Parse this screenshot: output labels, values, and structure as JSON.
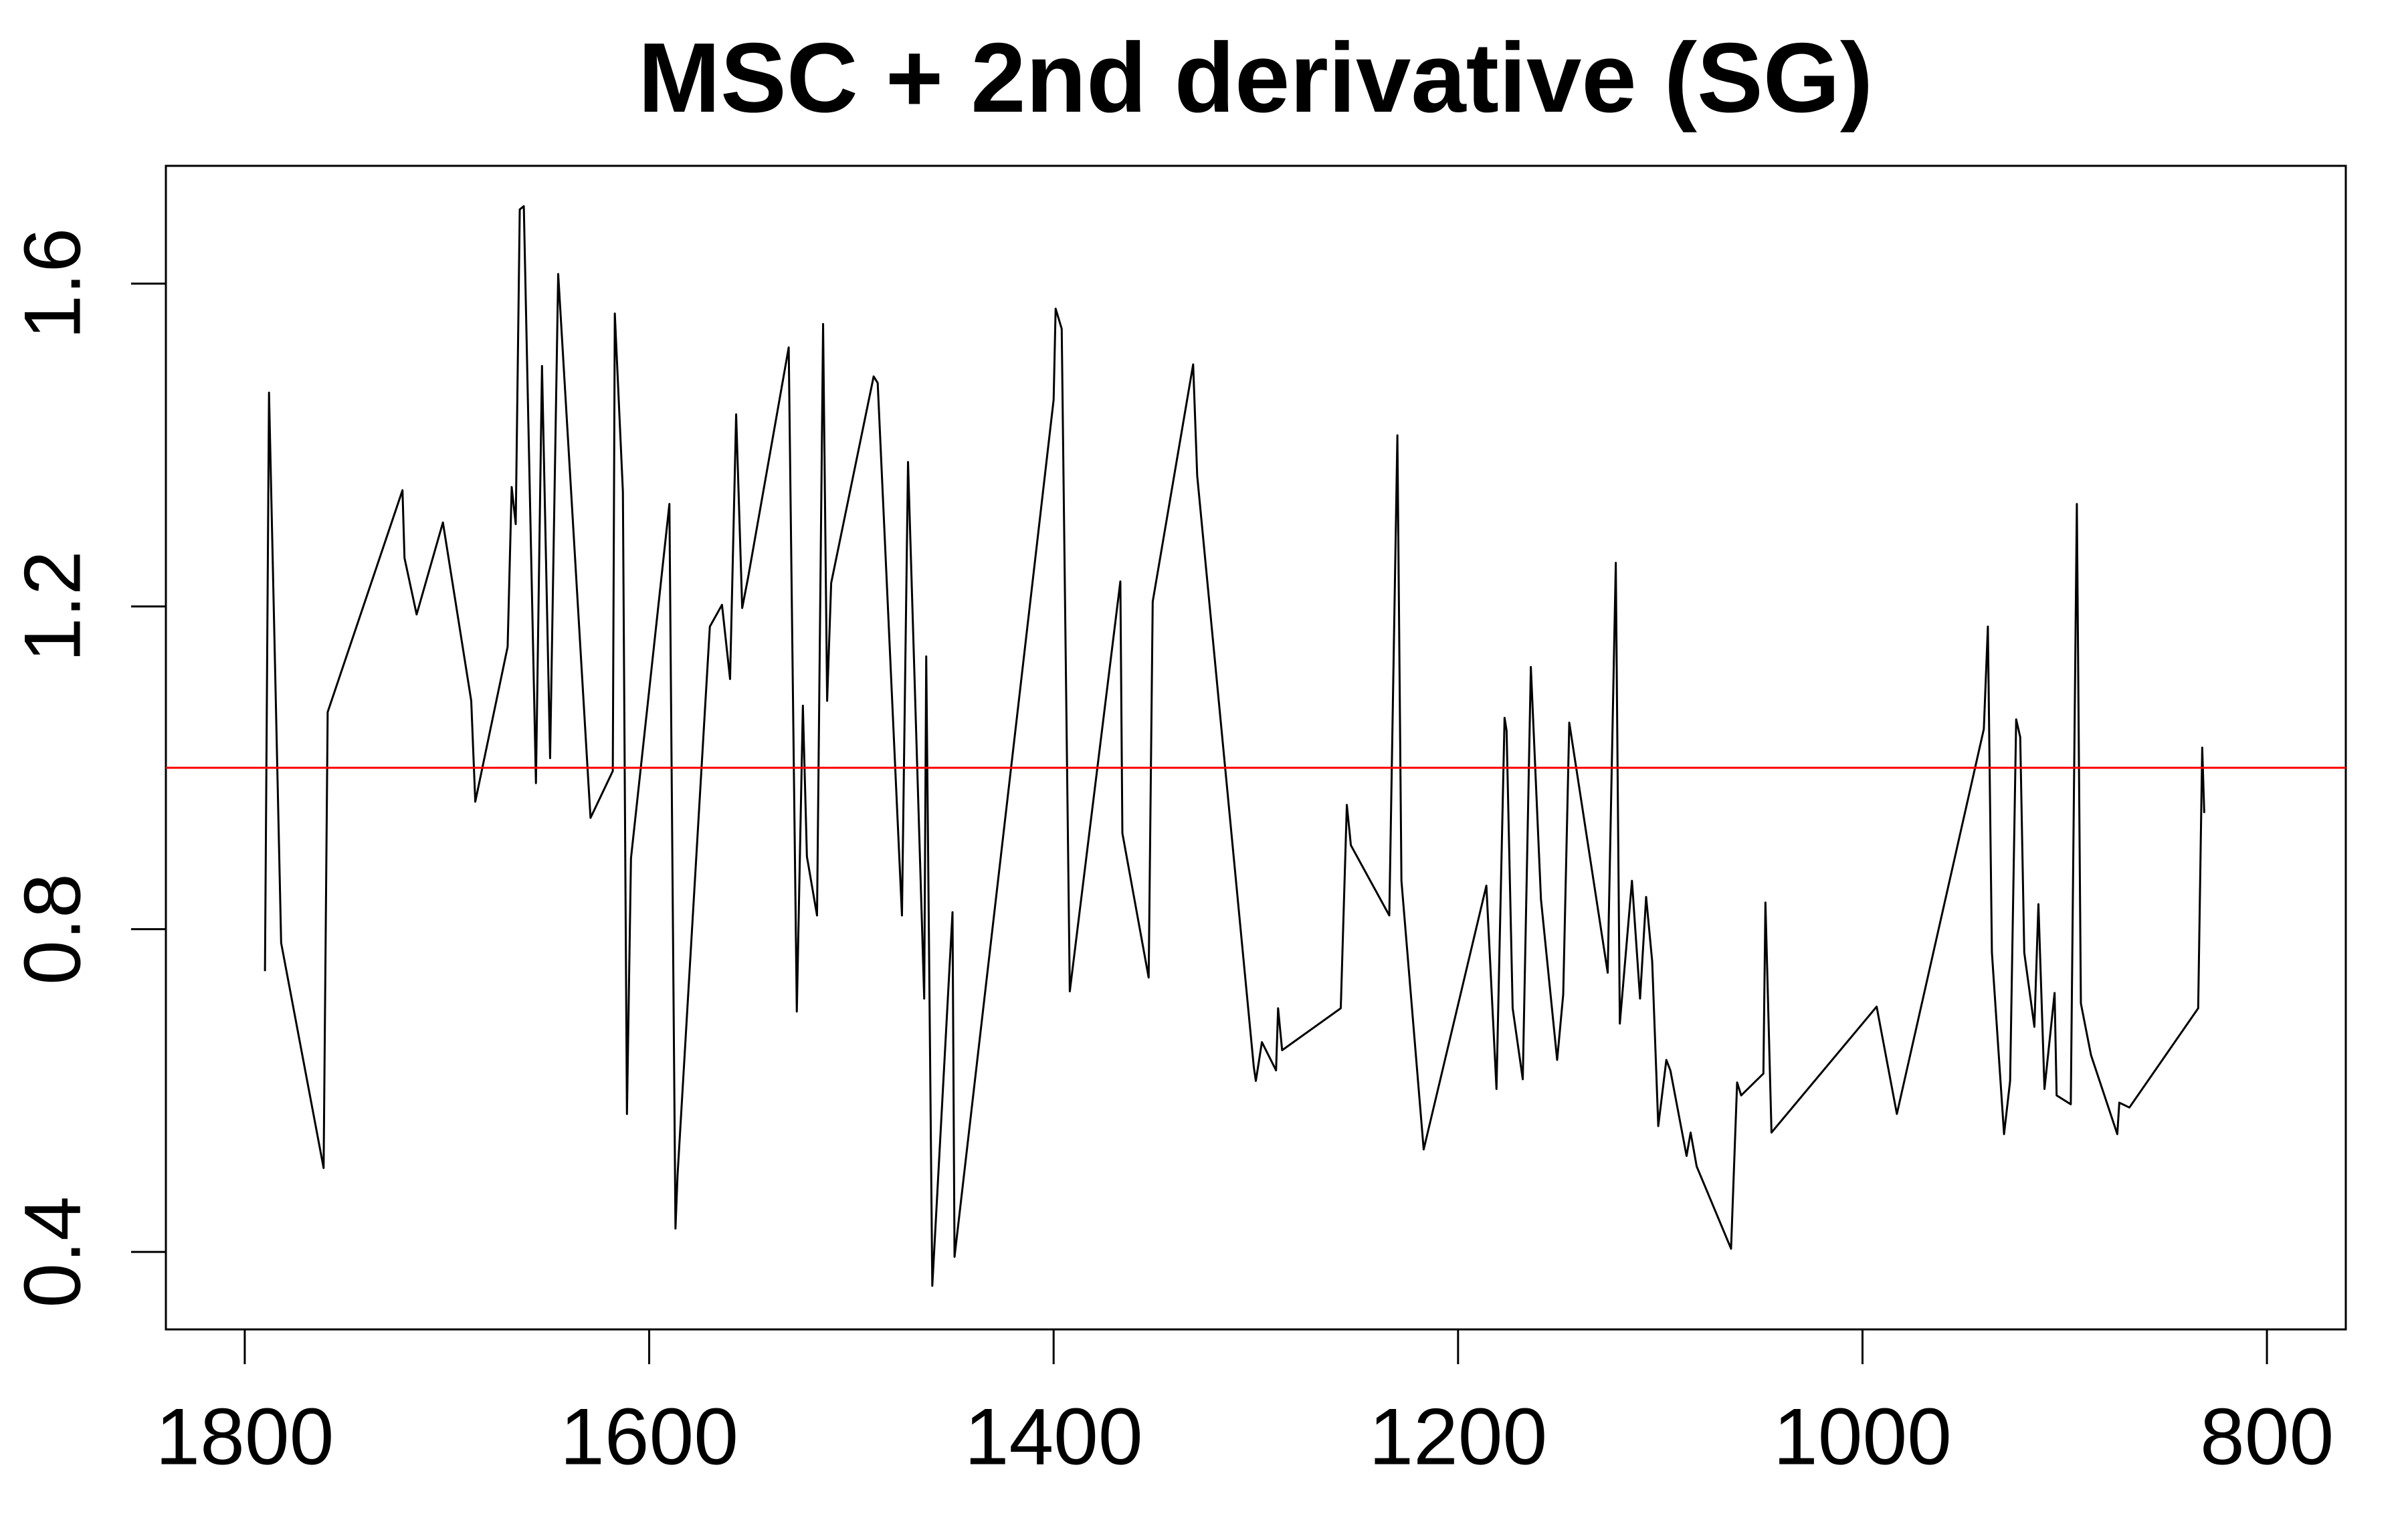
{
  "chart_data": {
    "type": "line",
    "title": "MSC + 2nd derivative (SG)",
    "x": [
      1790,
      1788,
      1782,
      1761,
      1759,
      1722,
      1721,
      1715,
      1702,
      1688,
      1686,
      1670,
      1668,
      1666,
      1664,
      1662,
      1656,
      1653,
      1649,
      1645,
      1630,
      1629,
      1618,
      1617,
      1613,
      1611,
      1609,
      1590,
      1587,
      1586,
      1570,
      1564,
      1560,
      1557,
      1554,
      1551,
      1531,
      1527,
      1524,
      1522,
      1517,
      1514,
      1512,
      1510,
      1489,
      1487,
      1475,
      1472,
      1464,
      1463,
      1460,
      1450,
      1449,
      1400,
      1399,
      1396,
      1392,
      1367,
      1366,
      1353,
      1351,
      1331,
      1329,
      1301,
      1300,
      1297,
      1290,
      1289,
      1287,
      1258,
      1255,
      1253,
      1234,
      1230,
      1228,
      1217,
      1186,
      1181,
      1177,
      1176,
      1173,
      1168,
      1164,
      1159,
      1151,
      1148,
      1145,
      1126,
      1122,
      1120,
      1114,
      1110,
      1107,
      1104,
      1101,
      1097,
      1095,
      1087,
      1085,
      1082,
      1065,
      1062,
      1060,
      1049,
      1048,
      1045,
      993,
      983,
      940,
      938,
      936,
      930,
      927,
      924,
      922,
      920,
      915,
      913,
      910,
      905,
      904,
      897,
      894,
      892,
      887,
      874,
      873,
      868,
      834,
      832,
      831
    ],
    "values": [
      0.748,
      1.465,
      0.783,
      0.504,
      1.069,
      1.344,
      1.26,
      1.19,
      1.304,
      1.083,
      0.958,
      1.15,
      1.348,
      1.302,
      1.692,
      1.696,
      0.981,
      1.498,
      1.012,
      1.612,
      0.979,
      0.938,
      0.996,
      1.563,
      1.342,
      0.571,
      0.888,
      1.327,
      0.429,
      0.494,
      1.175,
      1.202,
      1.11,
      1.438,
      1.198,
      1.237,
      1.521,
      0.698,
      1.077,
      0.89,
      0.817,
      1.55,
      1.083,
      1.229,
      1.485,
      1.477,
      0.817,
      1.379,
      0.714,
      1.138,
      0.358,
      0.821,
      0.394,
      1.456,
      1.569,
      1.544,
      0.723,
      1.231,
      0.919,
      0.74,
      1.206,
      1.5,
      1.362,
      0.629,
      0.612,
      0.66,
      0.625,
      0.702,
      0.65,
      0.702,
      0.954,
      0.904,
      0.817,
      1.412,
      0.86,
      0.527,
      0.854,
      0.602,
      1.062,
      1.046,
      0.702,
      0.614,
      1.125,
      0.837,
      0.638,
      0.719,
      1.056,
      0.746,
      1.254,
      0.683,
      0.86,
      0.714,
      0.84,
      0.76,
      0.556,
      0.638,
      0.625,
      0.519,
      0.548,
      0.506,
      0.404,
      0.61,
      0.594,
      0.621,
      0.833,
      0.548,
      0.704,
      0.571,
      1.048,
      1.175,
      0.771,
      0.546,
      0.612,
      1.06,
      1.038,
      0.771,
      0.679,
      0.831,
      0.602,
      0.721,
      0.594,
      0.583,
      1.327,
      0.708,
      0.644,
      0.546,
      0.585,
      0.579,
      0.702,
      1.025,
      0.944
    ],
    "color": "#000000",
    "xlim": [
      1839,
      761
    ],
    "ylim": [
      0.304,
      1.746
    ],
    "xticks": [
      1800,
      1600,
      1400,
      1200,
      1000,
      800
    ],
    "yticks": [
      0.4,
      0.8,
      1.2,
      1.6
    ],
    "hline": {
      "value": 1,
      "color": "#ff0000"
    }
  }
}
